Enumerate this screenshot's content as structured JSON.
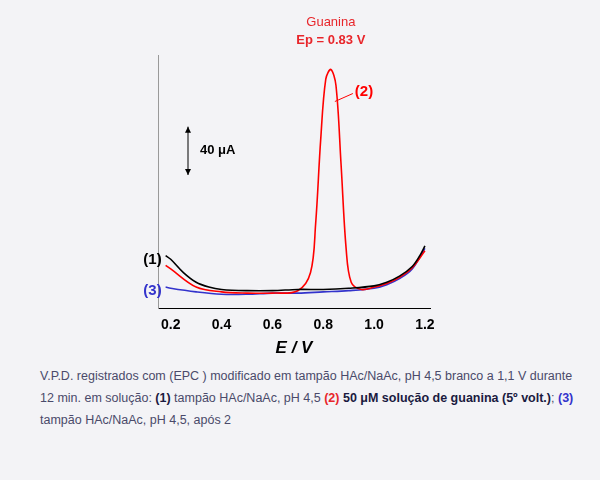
{
  "chart_data": {
    "type": "line",
    "xlabel": "E / V",
    "xlim": [
      0.15,
      1.22
    ],
    "xticks": [
      0.2,
      0.4,
      0.6,
      0.8,
      {
        "value": 1,
        "label": "1.0"
      },
      1.2
    ],
    "ylim": [
      0,
      210
    ],
    "tick_labels": "x",
    "grid": false,
    "scale_bar": {
      "value": 40,
      "label": "40 μA"
    },
    "annotations": [
      {
        "text": "Guanina",
        "color": "#e8262b"
      },
      {
        "text": "Ep = 0.83 V",
        "color": "#e8262b"
      }
    ],
    "series": [
      {
        "name": "(1)",
        "color": "#000000",
        "x": [
          0.18,
          0.2,
          0.25,
          0.3,
          0.35,
          0.4,
          0.5,
          0.6,
          0.7,
          0.8,
          0.9,
          1.0,
          1.05,
          1.1,
          1.15,
          1.18,
          1.2
        ],
        "values": [
          44,
          41,
          30,
          22,
          18,
          16,
          15,
          15,
          16,
          16,
          17,
          19,
          22,
          27,
          35,
          44,
          52
        ]
      },
      {
        "name": "(2)",
        "color": "#ff0000",
        "x": [
          0.18,
          0.2,
          0.3,
          0.4,
          0.5,
          0.6,
          0.7,
          0.75,
          0.77,
          0.79,
          0.81,
          0.83,
          0.85,
          0.87,
          0.89,
          0.91,
          0.95,
          1.0,
          1.05,
          1.1,
          1.15,
          1.2
        ],
        "values": [
          36,
          33,
          18,
          14,
          13,
          13,
          15,
          30,
          70,
          140,
          190,
          198,
          185,
          120,
          50,
          22,
          16,
          18,
          21,
          26,
          34,
          48
        ]
      },
      {
        "name": "(3)",
        "color": "#3333cc",
        "x": [
          0.18,
          0.2,
          0.3,
          0.4,
          0.5,
          0.6,
          0.7,
          0.8,
          0.9,
          1.0,
          1.05,
          1.1,
          1.15,
          1.2
        ],
        "values": [
          18,
          17,
          14,
          12,
          12,
          13,
          13,
          14,
          15,
          17,
          20,
          25,
          33,
          50
        ]
      }
    ],
    "caption": [
      {
        "text": "V.P.D. registrados com (EPC ) modificado em tampão HAc/NaAc, pH 4,5 branco a 1,1 V durante 12 min. em solução: "
      },
      {
        "text": "(1)",
        "color": "#1a1a40"
      },
      {
        "text": " tampão HAc/NaAc, pH 4,5 "
      },
      {
        "text": "(2)",
        "color": "#e8262b"
      },
      {
        "text": " 50 μM solução de guanina (5º volt.)",
        "color": "#1a1a40"
      },
      {
        "text": "; "
      },
      {
        "text": "(3)",
        "color": "#3333cc"
      },
      {
        "text": " tampão HAc/NaAc, pH 4,5, após 2"
      }
    ]
  }
}
